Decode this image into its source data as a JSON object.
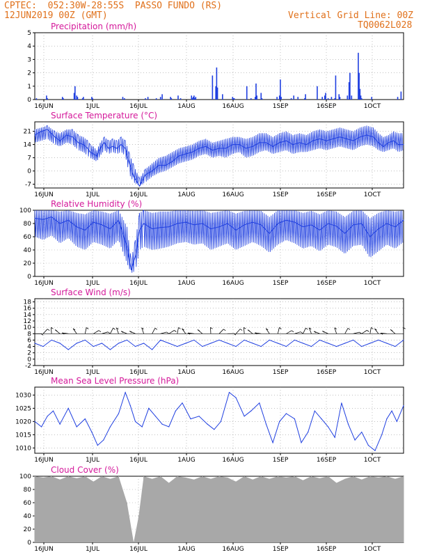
{
  "header": {
    "line1_left": "CPTEC:  052:30W-28:55S  PASSO FUNDO (RS)",
    "line2_left": "12JUN2019 00Z (GMT)",
    "line2_right": "Vertical Grid Line: 00Z",
    "line3_right": "TQ0062L028"
  },
  "colors": {
    "series": "#1f3fe0",
    "wind_barbs": "#000000",
    "cloud": "#a8a8a8",
    "title": "#d4189a",
    "header": "#e0701a",
    "grid": "#999999"
  },
  "chart_data": [
    {
      "type": "bar",
      "title": "Precipitation (mm/h)",
      "x_tick_labels": [
        "16JUN",
        "1JUL",
        "16JUL",
        "1AUG",
        "16AUG",
        "1SEP",
        "16SEP",
        "1OCT"
      ],
      "y_ticks": [
        0,
        1,
        2,
        3,
        4,
        5
      ],
      "ylim": [
        0,
        5
      ],
      "grid": true,
      "x": [
        2,
        14,
        15,
        33,
        34,
        47,
        48,
        50,
        51,
        57,
        58,
        68,
        69,
        105,
        107,
        132,
        135,
        145,
        150,
        152,
        162,
        163,
        171,
        174,
        187,
        188,
        189,
        190,
        191,
        192,
        212,
        216,
        217,
        218,
        224,
        236,
        237,
        238,
        253,
        258,
        263,
        264,
        265,
        270,
        271,
        289,
        292,
        293,
        294,
        306,
        309,
        314,
        322,
        323,
        337,
        343,
        346,
        347,
        350,
        354,
        358,
        359,
        363,
        364,
        373,
        375,
        376,
        378,
        386,
        387,
        388,
        389,
        390,
        402,
        433,
        437
      ],
      "values": [
        0.1,
        0.3,
        0.1,
        0.2,
        0.1,
        0.5,
        1.0,
        0.3,
        0.2,
        0.1,
        0.2,
        0.2,
        0.1,
        0.2,
        0.1,
        0.1,
        0.2,
        0.1,
        0.2,
        0.4,
        0.2,
        0.1,
        0.3,
        0.1,
        0.3,
        0.1,
        0.2,
        0.3,
        0.1,
        0.2,
        1.8,
        1.0,
        2.4,
        0.9,
        0.4,
        0.2,
        0.1,
        0.1,
        1.0,
        0.1,
        0.2,
        1.2,
        0.3,
        0.5,
        0.1,
        0.2,
        0.3,
        1.5,
        0.2,
        0.1,
        0.3,
        0.2,
        0.1,
        0.4,
        1.0,
        0.2,
        0.3,
        0.5,
        0.1,
        0.2,
        0.1,
        1.8,
        0.4,
        0.2,
        0.3,
        1.3,
        2.0,
        0.3,
        3.5,
        2.0,
        0.8,
        0.3,
        0.1,
        0.2,
        0.2,
        0.6
      ]
    },
    {
      "type": "line",
      "title": "Surface Temperature (°C)",
      "x_tick_labels": [
        "16JUN",
        "1JUL",
        "16JUL",
        "1AUG",
        "16AUG",
        "1SEP",
        "16SEP",
        "1OCT"
      ],
      "y_ticks": [
        -7,
        0,
        7,
        14,
        21
      ],
      "ylim": [
        -9,
        26
      ],
      "grid": true,
      "x": [
        0,
        8,
        15,
        24,
        30,
        38,
        45,
        52,
        58,
        63,
        66,
        70,
        74,
        78,
        83,
        88,
        93,
        98,
        103,
        108,
        113,
        118,
        125,
        132,
        140,
        148,
        156,
        164,
        172,
        180,
        188,
        196,
        204,
        212,
        220,
        228,
        236,
        244,
        252,
        260,
        268,
        276,
        284,
        292,
        300,
        308,
        316,
        324,
        332,
        340,
        348,
        356,
        364,
        372,
        380,
        388,
        396,
        404,
        410,
        416,
        422,
        428,
        434,
        440
      ],
      "values": [
        19,
        21,
        22,
        18,
        16,
        19,
        18,
        15,
        14,
        12,
        10,
        9,
        8,
        12,
        15,
        12,
        13,
        12,
        14,
        12,
        4,
        -3,
        -8,
        -2,
        0,
        3,
        3,
        5,
        8,
        9,
        10,
        12,
        13,
        11,
        12,
        12,
        14,
        14,
        12,
        13,
        15,
        15,
        13,
        15,
        16,
        14,
        15,
        14,
        16,
        17,
        16,
        17,
        18,
        17,
        16,
        18,
        19,
        18,
        15,
        13,
        15,
        16,
        14,
        14
      ],
      "min_envelope": [
        15,
        16,
        17,
        14,
        13,
        15,
        14,
        11,
        10,
        8,
        7,
        6,
        5,
        8,
        11,
        9,
        10,
        9,
        10,
        8,
        -2,
        -6,
        -8,
        -6,
        -3,
        -1,
        0,
        2,
        4,
        5,
        6,
        8,
        9,
        7,
        8,
        7,
        9,
        10,
        7,
        8,
        10,
        11,
        9,
        10,
        11,
        9,
        10,
        10,
        11,
        12,
        11,
        12,
        13,
        12,
        11,
        13,
        14,
        13,
        11,
        10,
        11,
        12,
        10,
        11
      ],
      "max_envelope": [
        22,
        23,
        24,
        21,
        20,
        22,
        22,
        19,
        18,
        16,
        14,
        13,
        11,
        15,
        18,
        16,
        17,
        16,
        18,
        16,
        9,
        3,
        -4,
        1,
        4,
        7,
        8,
        10,
        12,
        13,
        14,
        16,
        17,
        15,
        16,
        17,
        18,
        18,
        17,
        18,
        20,
        20,
        18,
        20,
        21,
        19,
        20,
        19,
        21,
        22,
        21,
        22,
        23,
        22,
        21,
        23,
        24,
        23,
        20,
        18,
        19,
        21,
        20,
        20
      ]
    },
    {
      "type": "line",
      "title": "Relative Humidity (%)",
      "x_tick_labels": [
        "16JUN",
        "1JUL",
        "16JUL",
        "1AUG",
        "16AUG",
        "1SEP",
        "16SEP",
        "1OCT"
      ],
      "y_ticks": [
        0,
        20,
        40,
        60,
        80,
        100
      ],
      "ylim": [
        0,
        100
      ],
      "grid": true,
      "x": [
        0,
        10,
        20,
        30,
        40,
        50,
        60,
        70,
        80,
        90,
        100,
        110,
        115,
        120,
        125,
        130,
        140,
        150,
        160,
        170,
        180,
        190,
        200,
        210,
        220,
        230,
        240,
        250,
        260,
        270,
        280,
        290,
        300,
        310,
        320,
        330,
        340,
        350,
        360,
        370,
        380,
        390,
        400,
        410,
        420,
        430,
        440
      ],
      "values": [
        88,
        86,
        90,
        80,
        85,
        75,
        70,
        82,
        78,
        72,
        85,
        45,
        10,
        30,
        70,
        80,
        72,
        74,
        75,
        80,
        82,
        78,
        80,
        72,
        75,
        80,
        70,
        78,
        82,
        78,
        65,
        80,
        85,
        82,
        75,
        78,
        70,
        80,
        76,
        65,
        78,
        80,
        60,
        72,
        80,
        75,
        85
      ],
      "min_envelope": [
        60,
        55,
        62,
        50,
        58,
        45,
        40,
        52,
        48,
        42,
        55,
        20,
        5,
        8,
        40,
        45,
        40,
        42,
        45,
        50,
        52,
        48,
        50,
        40,
        45,
        50,
        40,
        46,
        52,
        46,
        36,
        48,
        55,
        50,
        42,
        46,
        38,
        48,
        44,
        34,
        46,
        48,
        28,
        38,
        48,
        42,
        52
      ],
      "max_envelope": [
        100,
        100,
        100,
        98,
        100,
        96,
        94,
        100,
        98,
        95,
        100,
        75,
        25,
        55,
        96,
        100,
        96,
        98,
        98,
        100,
        100,
        99,
        100,
        96,
        98,
        100,
        95,
        99,
        100,
        99,
        90,
        100,
        100,
        100,
        96,
        99,
        94,
        100,
        98,
        90,
        99,
        100,
        88,
        96,
        100,
        98,
        100
      ]
    },
    {
      "type": "line",
      "title": "Surface Wind (m/s)",
      "x_tick_labels": [
        "16JUN",
        "1JUL",
        "16JUL",
        "1AUG",
        "16AUG",
        "1SEP",
        "16SEP",
        "1OCT"
      ],
      "y_ticks": [
        -2,
        0,
        2,
        4,
        6,
        8,
        10,
        12,
        14,
        16,
        18
      ],
      "ylim": [
        -2,
        19
      ],
      "grid": true,
      "x": [
        0,
        10,
        20,
        30,
        40,
        50,
        60,
        70,
        80,
        90,
        100,
        110,
        120,
        130,
        140,
        150,
        160,
        170,
        180,
        190,
        200,
        210,
        220,
        230,
        240,
        250,
        260,
        270,
        280,
        290,
        300,
        310,
        320,
        330,
        340,
        350,
        360,
        370,
        380,
        390,
        400,
        410,
        420,
        430,
        440
      ],
      "values": [
        5,
        4,
        6,
        5,
        3,
        5,
        6,
        4,
        5,
        3,
        5,
        6,
        4,
        5,
        3,
        6,
        5,
        4,
        5,
        6,
        4,
        5,
        6,
        5,
        4,
        6,
        5,
        4,
        6,
        5,
        4,
        6,
        5,
        4,
        6,
        5,
        4,
        5,
        6,
        4,
        5,
        6,
        5,
        4,
        6
      ],
      "barb_level": 8,
      "barb_stride": 2
    },
    {
      "type": "line",
      "title": "Mean Sea Level Pressure (hPa)",
      "x_tick_labels": [
        "16JUN",
        "1JUL",
        "16JUL",
        "1AUG",
        "16AUG",
        "1SEP",
        "16SEP",
        "1OCT"
      ],
      "y_ticks": [
        1010,
        1015,
        1020,
        1025,
        1030
      ],
      "ylim": [
        1008,
        1033
      ],
      "grid": true,
      "x": [
        0,
        8,
        15,
        22,
        30,
        40,
        50,
        60,
        68,
        75,
        82,
        90,
        100,
        108,
        114,
        120,
        128,
        136,
        144,
        152,
        160,
        168,
        176,
        186,
        196,
        206,
        214,
        222,
        232,
        240,
        250,
        258,
        268,
        276,
        284,
        292,
        300,
        310,
        318,
        326,
        334,
        342,
        350,
        358,
        366,
        374,
        382,
        390,
        398,
        406,
        414,
        420,
        426,
        432,
        440
      ],
      "values": [
        1020,
        1018,
        1022,
        1024,
        1019,
        1025,
        1018,
        1021,
        1016,
        1011,
        1013,
        1018,
        1023,
        1031,
        1026,
        1020,
        1018,
        1025,
        1022,
        1019,
        1018,
        1024,
        1027,
        1021,
        1022,
        1019,
        1017,
        1020,
        1031,
        1029,
        1022,
        1024,
        1027,
        1019,
        1012,
        1020,
        1023,
        1021,
        1012,
        1016,
        1024,
        1021,
        1018,
        1014,
        1027,
        1019,
        1013,
        1016,
        1011,
        1009,
        1015,
        1021,
        1024,
        1020,
        1026
      ]
    },
    {
      "type": "bar",
      "title": "Cloud Cover (%)",
      "x_tick_labels": [
        "16JUN",
        "1JUL",
        "16JUL",
        "1AUG",
        "16AUG",
        "1SEP",
        "16SEP",
        "1OCT"
      ],
      "y_ticks": [
        0,
        20,
        40,
        60,
        80,
        100
      ],
      "ylim": [
        0,
        100
      ],
      "grid": true,
      "x": [
        0,
        10,
        20,
        30,
        40,
        50,
        60,
        70,
        80,
        90,
        100,
        110,
        118,
        124,
        130,
        140,
        150,
        160,
        170,
        180,
        190,
        200,
        210,
        220,
        230,
        240,
        250,
        260,
        270,
        280,
        290,
        300,
        310,
        320,
        330,
        340,
        350,
        360,
        370,
        380,
        390,
        400,
        410,
        420,
        430,
        440
      ],
      "values": [
        100,
        98,
        100,
        95,
        100,
        97,
        100,
        92,
        100,
        96,
        100,
        60,
        0,
        40,
        100,
        96,
        100,
        90,
        100,
        98,
        95,
        100,
        96,
        100,
        98,
        92,
        100,
        95,
        100,
        96,
        100,
        98,
        100,
        94,
        100,
        97,
        100,
        90,
        96,
        100,
        95,
        100,
        98,
        100,
        96,
        100
      ]
    }
  ]
}
